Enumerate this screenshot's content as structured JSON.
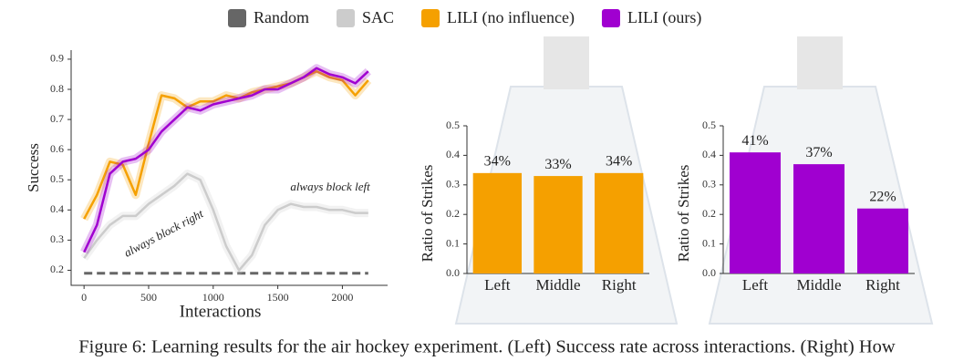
{
  "chart_data": [
    {
      "type": "line",
      "xlabel": "Interactions",
      "ylabel": "Success",
      "x": [
        0,
        100,
        200,
        300,
        400,
        500,
        600,
        700,
        800,
        900,
        1000,
        1100,
        1200,
        1300,
        1400,
        1500,
        1600,
        1700,
        1800,
        1900,
        2000,
        2100,
        2200
      ],
      "series": [
        {
          "name": "Random",
          "color": "#666666",
          "dashed": true,
          "values": [
            0.19,
            0.19,
            0.19,
            0.19,
            0.19,
            0.19,
            0.19,
            0.19,
            0.19,
            0.19,
            0.19,
            0.19,
            0.19,
            0.19,
            0.19,
            0.19,
            0.19,
            0.19,
            0.19,
            0.19,
            0.19,
            0.19,
            0.19
          ]
        },
        {
          "name": "SAC",
          "color": "#cccccc",
          "values": [
            0.24,
            0.3,
            0.35,
            0.38,
            0.38,
            0.42,
            0.45,
            0.48,
            0.52,
            0.5,
            0.4,
            0.28,
            0.2,
            0.25,
            0.35,
            0.4,
            0.42,
            0.41,
            0.41,
            0.4,
            0.4,
            0.39,
            0.39
          ]
        },
        {
          "name": "LILI (no influence)",
          "color": "#f5a000",
          "values": [
            0.37,
            0.45,
            0.56,
            0.55,
            0.45,
            0.62,
            0.78,
            0.77,
            0.74,
            0.76,
            0.76,
            0.78,
            0.77,
            0.79,
            0.8,
            0.81,
            0.82,
            0.84,
            0.86,
            0.84,
            0.83,
            0.78,
            0.83
          ]
        },
        {
          "name": "LILI (ours)",
          "color": "#a000d0",
          "values": [
            0.26,
            0.35,
            0.52,
            0.56,
            0.57,
            0.6,
            0.66,
            0.7,
            0.74,
            0.73,
            0.75,
            0.76,
            0.77,
            0.78,
            0.8,
            0.8,
            0.82,
            0.84,
            0.87,
            0.85,
            0.84,
            0.82,
            0.86
          ]
        }
      ],
      "annotations": [
        "always block right",
        "always block left"
      ],
      "xlim": [
        -100,
        2350
      ],
      "xticks": [
        0,
        500,
        1000,
        1500,
        2000
      ],
      "ylim": [
        0.15,
        0.93
      ],
      "yticks": [
        0.2,
        0.3,
        0.4,
        0.5,
        0.6,
        0.7,
        0.8,
        0.9
      ]
    },
    {
      "type": "bar",
      "ylabel": "Ratio of Strikes",
      "color": "#f5a000",
      "categories": [
        "Left",
        "Middle",
        "Right"
      ],
      "values": [
        0.34,
        0.33,
        0.34
      ],
      "value_labels": [
        "34%",
        "33%",
        "34%"
      ],
      "ylim": [
        0,
        0.5
      ],
      "yticks": [
        {
          "value": 0,
          "label": "0.0"
        },
        0.1,
        0.2,
        0.3,
        0.4,
        0.5
      ]
    },
    {
      "type": "bar",
      "ylabel": "Ratio of Strikes",
      "color": "#a000d0",
      "categories": [
        "Left",
        "Middle",
        "Right"
      ],
      "values": [
        0.41,
        0.37,
        0.22
      ],
      "value_labels": [
        "41%",
        "37%",
        "22%"
      ],
      "ylim": [
        0,
        0.5
      ],
      "yticks": [
        {
          "value": 0,
          "label": "0.0"
        },
        0.1,
        0.2,
        0.3,
        0.4,
        0.5
      ]
    }
  ],
  "caption": "Figure 6: Learning results for the air hockey experiment. (Left) Success rate across interactions. (Right) How"
}
